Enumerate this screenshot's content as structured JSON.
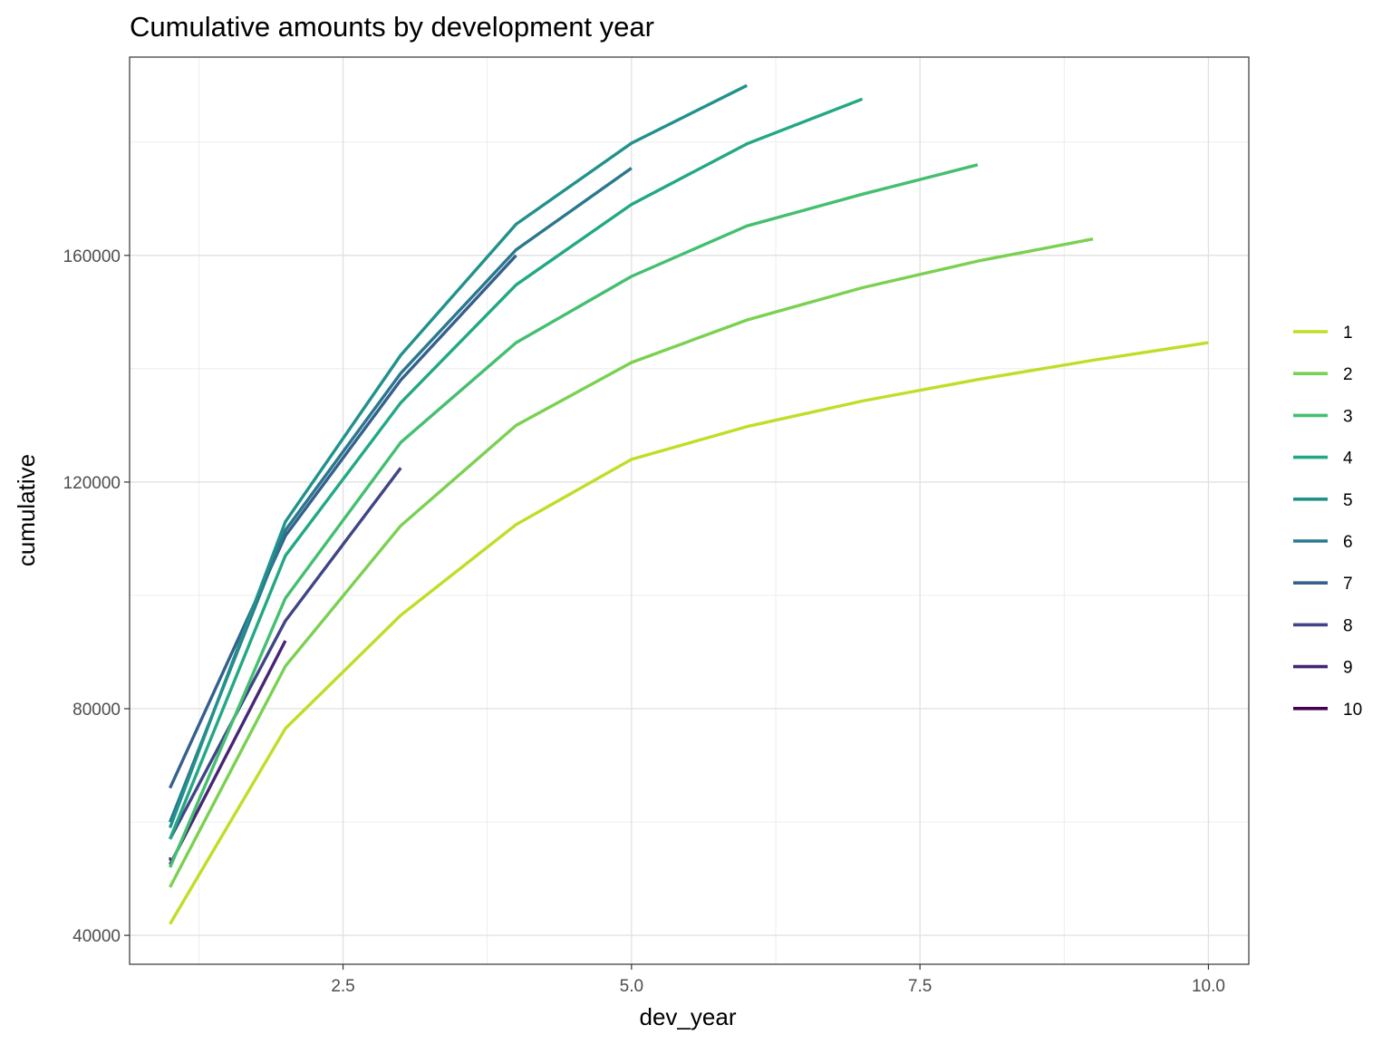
{
  "chart_data": {
    "type": "line",
    "title": "Cumulative amounts by development year",
    "xlabel": "dev_year",
    "ylabel": "cumulative",
    "xlim": [
      0.65,
      10.35
    ],
    "ylim": [
      34900,
      195000
    ],
    "x_ticks": [
      2.5,
      5.0,
      7.5,
      10.0
    ],
    "x_tick_labels": [
      "2.5",
      "5.0",
      "7.5",
      "10.0"
    ],
    "y_ticks": [
      40000,
      80000,
      120000,
      160000
    ],
    "y_tick_labels": [
      "40000",
      "80000",
      "120000",
      "160000"
    ],
    "grid": true,
    "legend_position": "right",
    "series": [
      {
        "name": "1",
        "color": "#bddf26",
        "x": [
          1,
          2,
          3,
          4,
          5,
          6,
          7,
          8,
          9,
          10
        ],
        "y": [
          42000,
          76500,
          96500,
          112500,
          124000,
          129800,
          134300,
          138100,
          141500,
          144600
        ]
      },
      {
        "name": "2",
        "color": "#7ad151",
        "x": [
          1,
          2,
          3,
          4,
          5,
          6,
          7,
          8,
          9
        ],
        "y": [
          48500,
          87500,
          112300,
          130000,
          141100,
          148600,
          154300,
          159000,
          162900
        ]
      },
      {
        "name": "3",
        "color": "#44bf70",
        "x": [
          1,
          2,
          3,
          4,
          5,
          6,
          7,
          8
        ],
        "y": [
          52000,
          99500,
          127000,
          144600,
          156300,
          165200,
          170800,
          176000
        ]
      },
      {
        "name": "4",
        "color": "#22a884",
        "x": [
          1,
          2,
          3,
          4,
          5,
          6,
          7
        ],
        "y": [
          57000,
          107000,
          134000,
          154800,
          169000,
          179700,
          187600
        ]
      },
      {
        "name": "5",
        "color": "#21918c",
        "x": [
          1,
          2,
          3,
          4,
          5,
          6
        ],
        "y": [
          59000,
          113000,
          142400,
          165500,
          179800,
          190000
        ]
      },
      {
        "name": "6",
        "color": "#2a788e",
        "x": [
          1,
          2,
          3,
          4,
          5
        ],
        "y": [
          60000,
          111500,
          139200,
          161000,
          175400
        ]
      },
      {
        "name": "7",
        "color": "#355f8d",
        "x": [
          1,
          2,
          3,
          4
        ],
        "y": [
          66000,
          110500,
          138000,
          160000
        ]
      },
      {
        "name": "8",
        "color": "#414487",
        "x": [
          1,
          2,
          3
        ],
        "y": [
          57000,
          95500,
          122500
        ]
      },
      {
        "name": "9",
        "color": "#482475",
        "x": [
          1,
          2
        ],
        "y": [
          52500,
          92000
        ]
      },
      {
        "name": "10",
        "color": "#440154",
        "x": [
          1
        ],
        "y": [
          53500
        ]
      }
    ]
  }
}
